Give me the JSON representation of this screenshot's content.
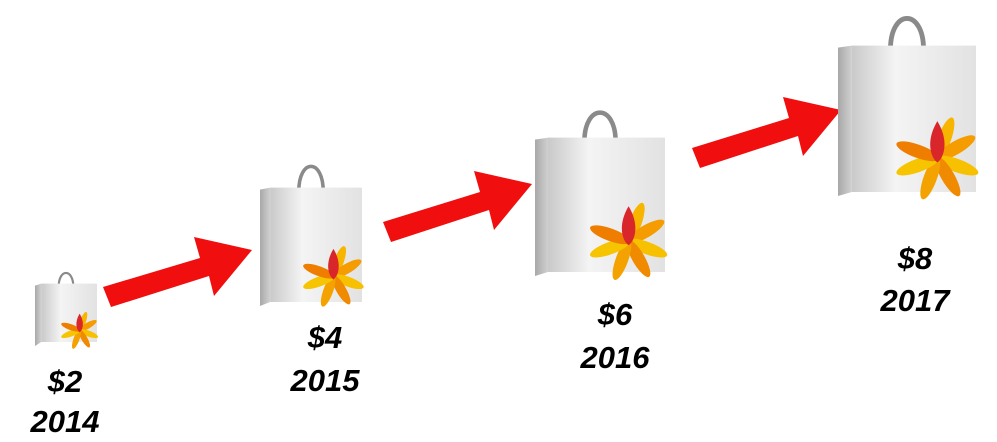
{
  "items": [
    {
      "value": "$2",
      "year": "2014"
    },
    {
      "value": "$4",
      "year": "2015"
    },
    {
      "value": "$6",
      "year": "2016"
    },
    {
      "value": "$8",
      "year": "2017"
    }
  ]
}
